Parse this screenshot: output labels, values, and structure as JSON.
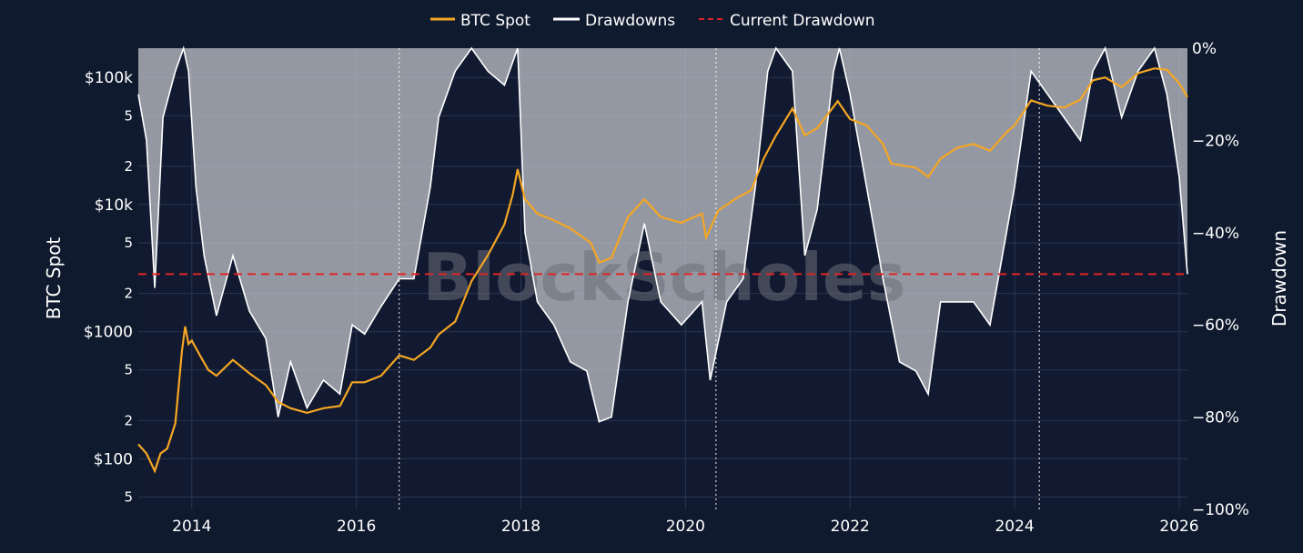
{
  "chart_data": {
    "type": "line",
    "title": "",
    "watermark": "BlockScholes",
    "legend": {
      "placement": "top-center",
      "entries": [
        {
          "name": "BTC Spot",
          "color": "#f5a623",
          "style": "solid"
        },
        {
          "name": "Drawdowns",
          "color": "#ffffff",
          "style": "solid"
        },
        {
          "name": "Current Drawdown",
          "color": "#e02424",
          "style": "dashed"
        }
      ]
    },
    "x_axis": {
      "ticks": [
        "2014",
        "2016",
        "2018",
        "2020",
        "2022",
        "2024",
        "2026"
      ],
      "range": [
        2013.35,
        2026.1
      ]
    },
    "y_left": {
      "label": "BTC Spot",
      "scale": "log",
      "range": [
        40,
        170000
      ],
      "major_ticks": [
        {
          "value": 100000,
          "label": "$100k"
        },
        {
          "value": 10000,
          "label": "$10k"
        },
        {
          "value": 1000,
          "label": "$1000"
        },
        {
          "value": 100,
          "label": "$100"
        }
      ],
      "minor_ticks": [
        {
          "value": 50000,
          "label": "5"
        },
        {
          "value": 20000,
          "label": "2"
        },
        {
          "value": 5000,
          "label": "5"
        },
        {
          "value": 2000,
          "label": "2"
        },
        {
          "value": 500,
          "label": "5"
        },
        {
          "value": 200,
          "label": "2"
        },
        {
          "value": 50,
          "label": "5"
        }
      ]
    },
    "y_right": {
      "label": "Drawdown",
      "range": [
        -100,
        0
      ],
      "ticks": [
        {
          "value": 0,
          "label": "0%"
        },
        {
          "value": -20,
          "label": "−20%"
        },
        {
          "value": -40,
          "label": "−40%"
        },
        {
          "value": -60,
          "label": "−60%"
        },
        {
          "value": -80,
          "label": "−80%"
        },
        {
          "value": -100,
          "label": "−100%"
        }
      ]
    },
    "current_drawdown": -49,
    "vertical_markers": [
      2016.52,
      2020.37,
      2024.3
    ],
    "series": [
      {
        "name": "BTC Spot",
        "x": [
          2013.35,
          2013.45,
          2013.55,
          2013.62,
          2013.7,
          2013.8,
          2013.88,
          2013.92,
          2013.96,
          2014.0,
          2014.1,
          2014.2,
          2014.3,
          2014.5,
          2014.7,
          2014.9,
          2015.05,
          2015.2,
          2015.4,
          2015.6,
          2015.8,
          2015.95,
          2016.1,
          2016.3,
          2016.52,
          2016.7,
          2016.9,
          2017.0,
          2017.2,
          2017.4,
          2017.6,
          2017.8,
          2017.9,
          2017.96,
          2018.05,
          2018.2,
          2018.4,
          2018.6,
          2018.85,
          2018.95,
          2019.1,
          2019.3,
          2019.5,
          2019.7,
          2019.95,
          2020.2,
          2020.25,
          2020.4,
          2020.6,
          2020.8,
          2020.95,
          2021.1,
          2021.3,
          2021.45,
          2021.6,
          2021.85,
          2022.0,
          2022.2,
          2022.4,
          2022.5,
          2022.8,
          2022.95,
          2023.1,
          2023.3,
          2023.5,
          2023.7,
          2023.9,
          2024.0,
          2024.2,
          2024.4,
          2024.6,
          2024.8,
          2024.95,
          2025.1,
          2025.3,
          2025.5,
          2025.7,
          2025.85,
          2026.0,
          2026.1
        ],
        "values": [
          130,
          110,
          80,
          110,
          120,
          190,
          700,
          1100,
          800,
          850,
          650,
          500,
          450,
          600,
          470,
          380,
          280,
          250,
          230,
          250,
          260,
          400,
          400,
          450,
          650,
          600,
          750,
          950,
          1200,
          2500,
          4000,
          7000,
          12000,
          19000,
          11000,
          8500,
          7500,
          6500,
          5000,
          3500,
          3800,
          8000,
          11000,
          8000,
          7200,
          8500,
          5500,
          9000,
          11000,
          13000,
          23000,
          35000,
          57000,
          35000,
          40000,
          65000,
          47000,
          42000,
          30000,
          21000,
          19500,
          16500,
          23000,
          28000,
          30000,
          26500,
          37000,
          42000,
          66000,
          60000,
          58000,
          67000,
          95000,
          100000,
          84000,
          108000,
          118000,
          115000,
          90000,
          70000
        ]
      },
      {
        "name": "Drawdowns",
        "x": [
          2013.35,
          2013.45,
          2013.55,
          2013.65,
          2013.8,
          2013.9,
          2013.96,
          2014.05,
          2014.15,
          2014.3,
          2014.5,
          2014.7,
          2014.9,
          2015.05,
          2015.2,
          2015.4,
          2015.6,
          2015.8,
          2015.95,
          2016.1,
          2016.3,
          2016.52,
          2016.7,
          2016.9,
          2017.0,
          2017.2,
          2017.4,
          2017.6,
          2017.8,
          2017.96,
          2018.05,
          2018.2,
          2018.4,
          2018.6,
          2018.8,
          2018.95,
          2019.1,
          2019.3,
          2019.5,
          2019.7,
          2019.95,
          2020.2,
          2020.3,
          2020.5,
          2020.7,
          2020.85,
          2021.0,
          2021.1,
          2021.3,
          2021.45,
          2021.6,
          2021.8,
          2021.87,
          2022.0,
          2022.2,
          2022.4,
          2022.6,
          2022.8,
          2022.95,
          2023.1,
          2023.3,
          2023.5,
          2023.7,
          2023.9,
          2024.0,
          2024.2,
          2024.4,
          2024.6,
          2024.8,
          2024.95,
          2025.1,
          2025.3,
          2025.5,
          2025.7,
          2025.85,
          2026.0,
          2026.1
        ],
        "values": [
          -10,
          -20,
          -52,
          -15,
          -5,
          0,
          -5,
          -30,
          -45,
          -58,
          -45,
          -57,
          -63,
          -80,
          -68,
          -78,
          -72,
          -75,
          -60,
          -62,
          -56,
          -50,
          -50,
          -30,
          -15,
          -5,
          0,
          -5,
          -8,
          0,
          -40,
          -55,
          -60,
          -68,
          -70,
          -81,
          -80,
          -55,
          -38,
          -55,
          -60,
          -55,
          -72,
          -55,
          -50,
          -30,
          -5,
          0,
          -5,
          -45,
          -35,
          -5,
          0,
          -10,
          -30,
          -50,
          -68,
          -70,
          -75,
          -55,
          -55,
          -55,
          -60,
          -40,
          -30,
          -5,
          -10,
          -15,
          -20,
          -5,
          0,
          -15,
          -5,
          0,
          -10,
          -28,
          -49
        ]
      }
    ]
  }
}
